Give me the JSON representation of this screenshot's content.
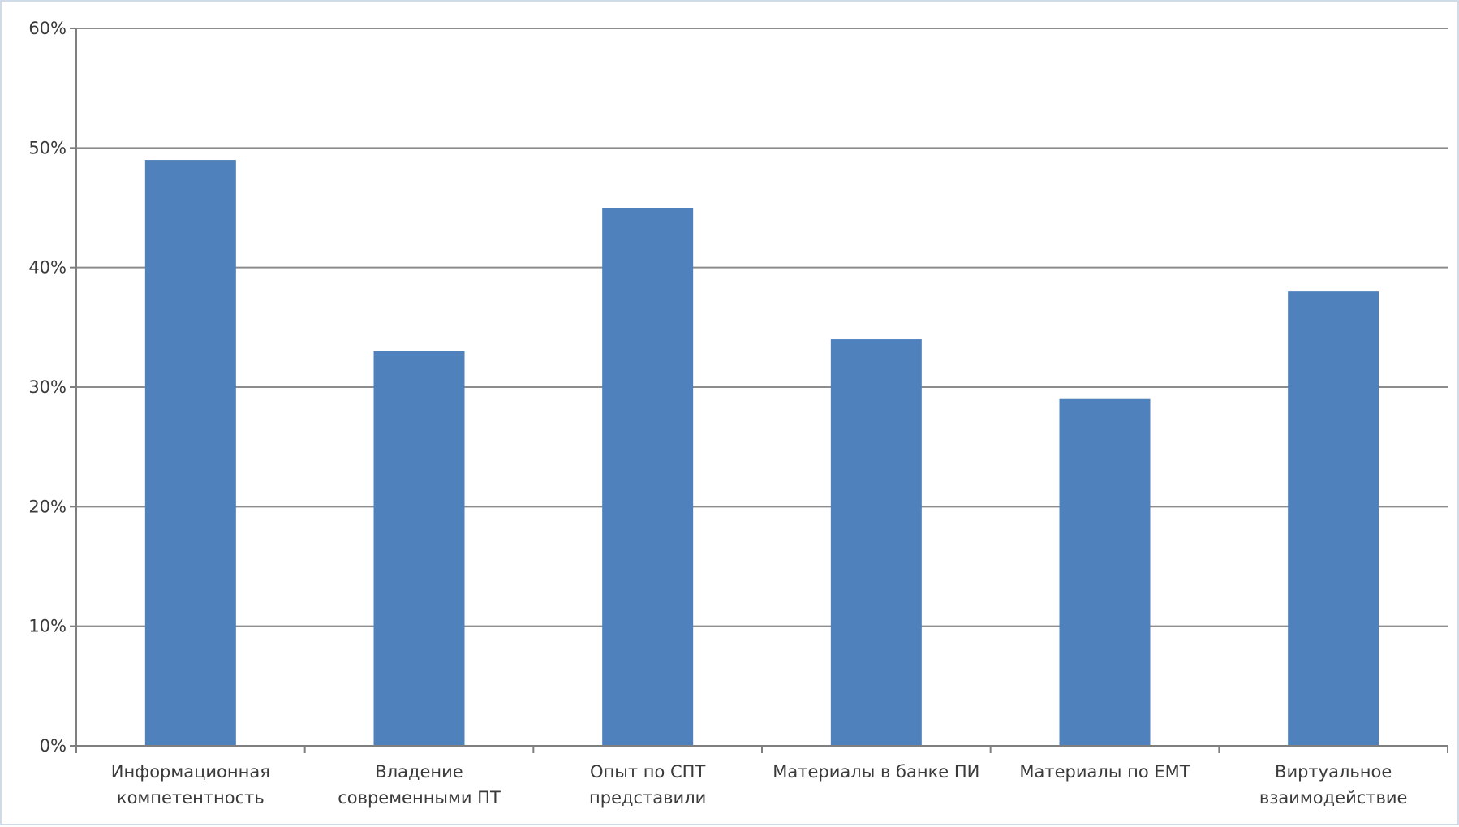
{
  "chart_data": {
    "type": "bar",
    "title": "",
    "xlabel": "",
    "ylabel": "",
    "categories": [
      [
        "Информационная",
        "компетентность"
      ],
      [
        "Владение",
        "современными ПТ"
      ],
      [
        "Опыт по СПТ",
        "представили"
      ],
      [
        "Материалы в банке ПИ"
      ],
      [
        "Материалы по ЕМТ"
      ],
      [
        "Виртуальное",
        "взаимодействие"
      ]
    ],
    "values": [
      49,
      33,
      45,
      34,
      29,
      38
    ],
    "ylim": [
      0,
      60
    ],
    "yticks": [
      0,
      10,
      20,
      30,
      40,
      50,
      60
    ],
    "ytick_labels": [
      "0%",
      "10%",
      "20%",
      "30%",
      "40%",
      "50%",
      "60%"
    ],
    "value_format": "percent",
    "grid": true,
    "legend": "none",
    "colors": {
      "bar": "#4f81bd",
      "grid": "#8c8c8c",
      "axis": "#7f7f7f"
    }
  }
}
